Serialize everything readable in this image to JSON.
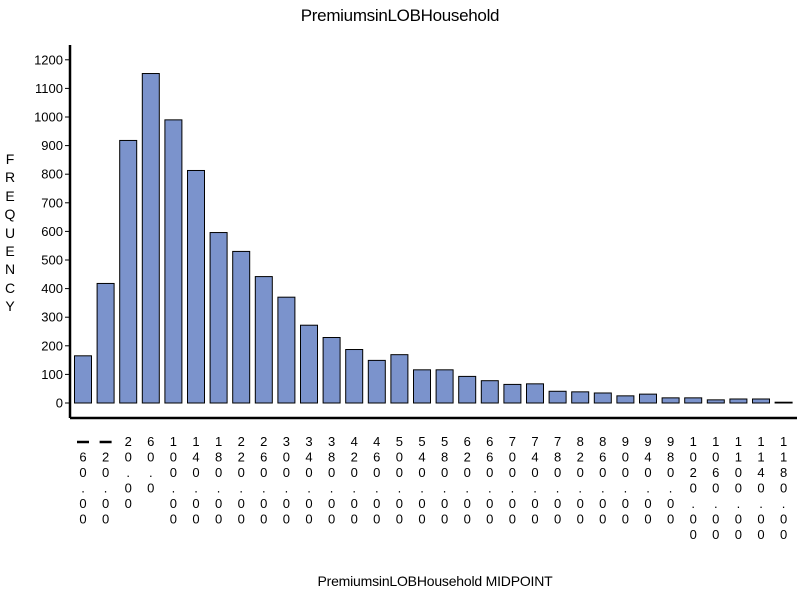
{
  "chart_data": {
    "type": "bar",
    "title": "PremiumsinLOBHousehold",
    "xlabel": "PremiumsinLOBHousehold  MIDPOINT",
    "ylabel": "FREQUENCY",
    "ylim": [
      0,
      1200
    ],
    "yticks": [
      0,
      100,
      200,
      300,
      400,
      500,
      600,
      700,
      800,
      900,
      1000,
      1100,
      1200
    ],
    "grid": false,
    "bar_color": "#7b93cc",
    "categories": [
      "-60.00",
      "-20.00",
      "20.00",
      "60.0",
      "100.00",
      "140.00",
      "180.00",
      "220.00",
      "260.00",
      "300.00",
      "340.00",
      "380.00",
      "420.00",
      "460.00",
      "500.00",
      "540.00",
      "580.00",
      "620.00",
      "660.00",
      "700.00",
      "740.00",
      "780.00",
      "820.00",
      "860.00",
      "900.00",
      "940.00",
      "980.00",
      "1020.00",
      "1060.00",
      "1100.00",
      "1140.00",
      "1180.00"
    ],
    "values": [
      165,
      418,
      918,
      1152,
      990,
      813,
      596,
      530,
      442,
      370,
      272,
      229,
      187,
      149,
      169,
      116,
      116,
      93,
      78,
      65,
      67,
      41,
      39,
      35,
      25,
      31,
      18,
      18,
      11,
      14,
      14,
      2
    ]
  }
}
